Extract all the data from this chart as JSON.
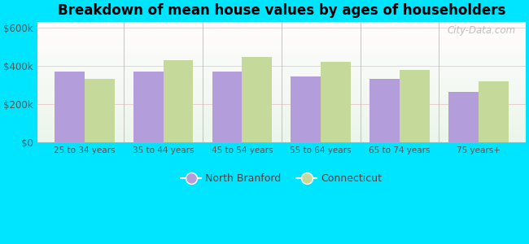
{
  "title": "Breakdown of mean house values by ages of householders",
  "categories": [
    "25 to 34 years",
    "35 to 44 years",
    "45 to 54 years",
    "55 to 64 years",
    "65 to 74 years",
    "75 years+"
  ],
  "north_branford": [
    370000,
    368000,
    368000,
    345000,
    332000,
    263000
  ],
  "connecticut": [
    330000,
    430000,
    445000,
    418000,
    378000,
    320000
  ],
  "color_nb": "#b39ddb",
  "color_ct": "#c5d99a",
  "ylabel_ticks": [
    0,
    200000,
    400000,
    600000
  ],
  "ylabel_labels": [
    "$0",
    "$200k",
    "$400k",
    "$600k"
  ],
  "ylim": [
    0,
    630000
  ],
  "legend_nb": "North Branford",
  "legend_ct": "Connecticut",
  "bg_outer": "#00e5ff",
  "watermark": "City-Data.com"
}
